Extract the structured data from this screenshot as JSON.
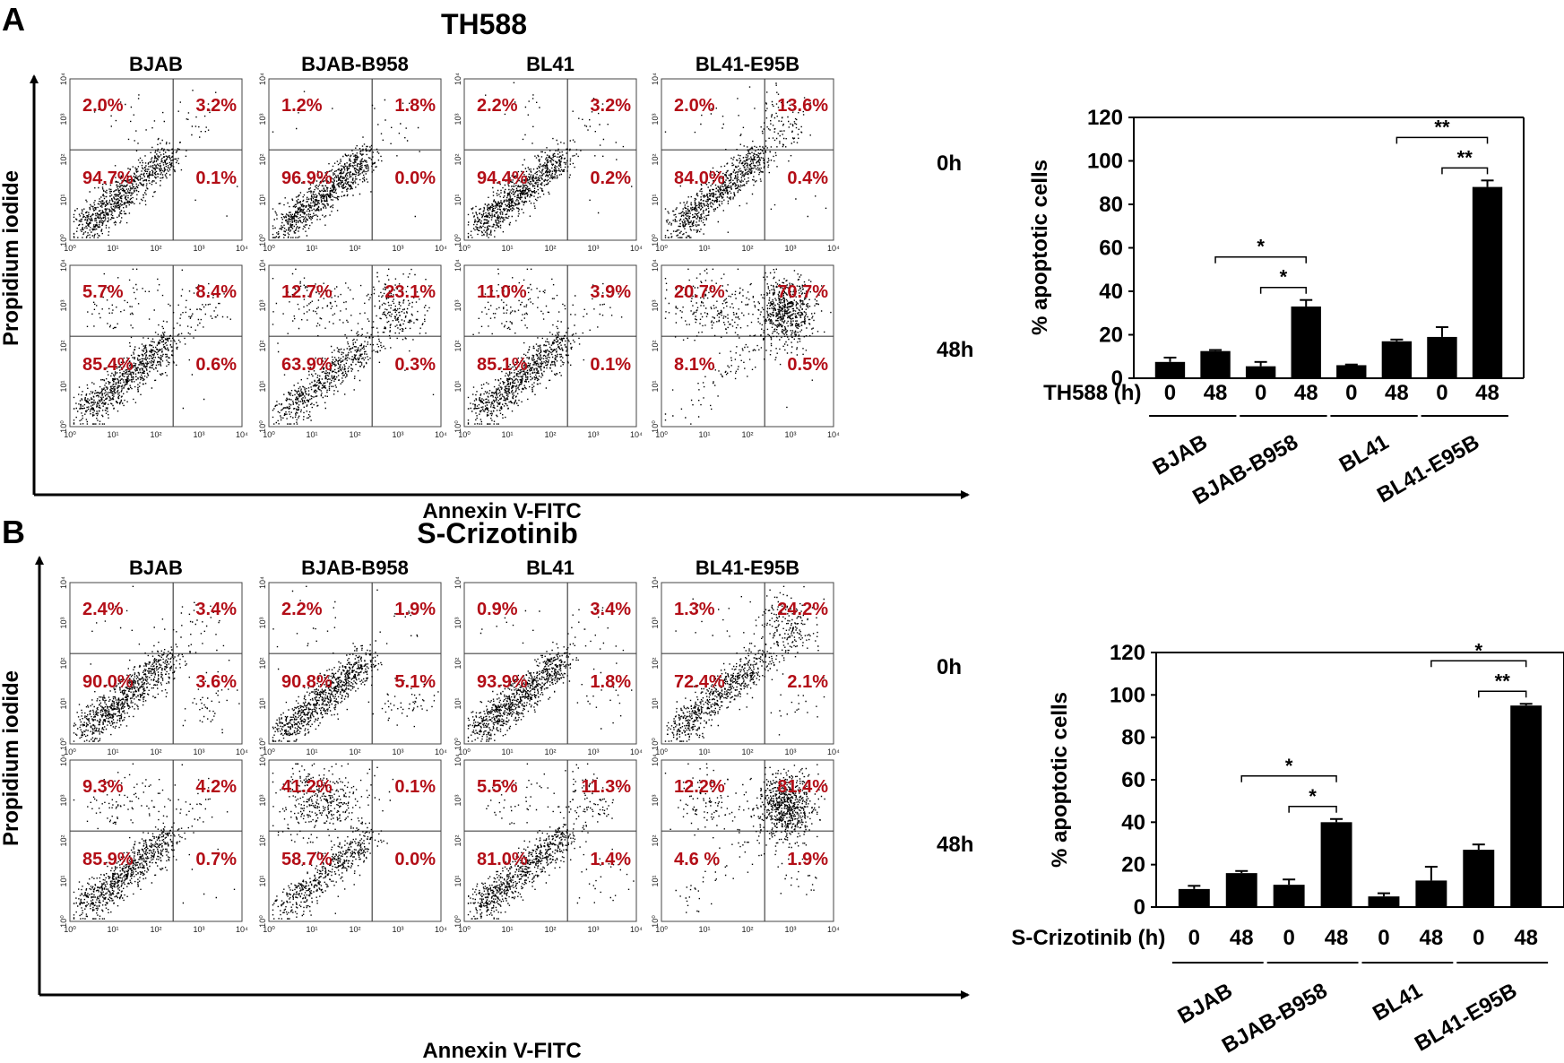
{
  "panels": [
    {
      "letter": "A",
      "title": "TH588",
      "cell_lines": [
        "BJAB",
        "BJAB-B958",
        "BL41",
        "BL41-E95B"
      ],
      "timepoints": [
        "0h",
        "48h"
      ],
      "y_axis_label": "Propidium iodide",
      "x_axis_label": "Annexin V-FITC",
      "flow_quadrants": [
        [
          {
            "ul": "2.0%",
            "ur": "3.2%",
            "ll": "94.7%",
            "lr": "0.1%"
          },
          {
            "ul": "1.2%",
            "ur": "1.8%",
            "ll": "96.9%",
            "lr": "0.0%"
          },
          {
            "ul": "2.2%",
            "ur": "3.2%",
            "ll": "94.4%",
            "lr": "0.2%"
          },
          {
            "ul": "2.0%",
            "ur": "13.6%",
            "ll": "84.0%",
            "lr": "0.4%"
          }
        ],
        [
          {
            "ul": "5.7%",
            "ur": "8.4%",
            "ll": "85.4%",
            "lr": "0.6%"
          },
          {
            "ul": "12.7%",
            "ur": "23.1%",
            "ll": "63.9%",
            "lr": "0.3%"
          },
          {
            "ul": "11.0%",
            "ur": "3.9%",
            "ll": "85.1%",
            "lr": "0.1%"
          },
          {
            "ul": "20.7%",
            "ur": "70.7%",
            "ll": "8.1%",
            "lr": "0.5%"
          }
        ]
      ],
      "treatment_label": "TH588 (h)"
    },
    {
      "letter": "B",
      "title": "S-Crizotinib",
      "cell_lines": [
        "BJAB",
        "BJAB-B958",
        "BL41",
        "BL41-E95B"
      ],
      "timepoints": [
        "0h",
        "48h"
      ],
      "y_axis_label": "Propidium iodide",
      "x_axis_label": "Annexin V-FITC",
      "flow_quadrants": [
        [
          {
            "ul": "2.4%",
            "ur": "3.4%",
            "ll": "90.0%",
            "lr": "3.6%"
          },
          {
            "ul": "2.2%",
            "ur": "1.9%",
            "ll": "90.8%",
            "lr": "5.1%"
          },
          {
            "ul": "0.9%",
            "ur": "3.4%",
            "ll": "93.9%",
            "lr": "1.8%"
          },
          {
            "ul": "1.3%",
            "ur": "24.2%",
            "ll": "72.4%",
            "lr": "2.1%"
          }
        ],
        [
          {
            "ul": "9.3%",
            "ur": "4.2%",
            "ll": "85.9%",
            "lr": "0.7%"
          },
          {
            "ul": "41.2%",
            "ur": "0.1%",
            "ll": "58.7%",
            "lr": "0.0%"
          },
          {
            "ul": "5.5%",
            "ur": "11.3%",
            "ll": "81.0%",
            "lr": "1.4%"
          },
          {
            "ul": "12.2%",
            "ur": "81.4%",
            "ll": "4.6 %",
            "lr": "1.9%"
          }
        ]
      ],
      "treatment_label": "S-Crizotinib (h)"
    }
  ],
  "flow_axis_ticks": [
    "10⁰",
    "10¹",
    "10²",
    "10³",
    "10⁴"
  ],
  "chart_data": [
    {
      "type": "bar",
      "title": "TH588",
      "ylabel": "% apoptotic cells",
      "xlabel": "TH588 (h)",
      "ylim": [
        0,
        120
      ],
      "yticks": [
        0,
        20,
        40,
        60,
        80,
        100,
        120
      ],
      "groups": [
        "BJAB",
        "BJAB-B958",
        "BL41",
        "BL41-E95B"
      ],
      "categories": [
        "0",
        "48",
        "0",
        "48",
        "0",
        "48",
        "0",
        "48"
      ],
      "values": [
        7.5,
        12.5,
        5.5,
        33,
        6,
        17,
        19,
        88
      ],
      "errors": [
        2,
        0.5,
        2,
        3,
        0.3,
        0.8,
        4.5,
        3
      ],
      "significance": [
        {
          "label": "*",
          "from_bar": 1,
          "to_bar": 3
        },
        {
          "label": "*",
          "from_bar": 2,
          "to_bar": 3
        },
        {
          "label": "**",
          "from_bar": 5,
          "to_bar": 7
        },
        {
          "label": "**",
          "from_bar": 6,
          "to_bar": 7
        }
      ]
    },
    {
      "type": "bar",
      "title": "S-Crizotinib",
      "ylabel": "% apoptotic cells",
      "xlabel": "S-Crizotinib (h)",
      "ylim": [
        0,
        120
      ],
      "yticks": [
        0,
        20,
        40,
        60,
        80,
        100,
        120
      ],
      "groups": [
        "BJAB",
        "BJAB-B958",
        "BL41",
        "BL41-E95B"
      ],
      "categories": [
        "0",
        "48",
        "0",
        "48",
        "0",
        "48",
        "0",
        "48"
      ],
      "values": [
        8.5,
        16,
        10.5,
        40,
        5,
        12.5,
        27,
        95
      ],
      "errors": [
        1.5,
        1,
        2.5,
        1.5,
        1.5,
        6.5,
        2.5,
        0.8
      ],
      "significance": [
        {
          "label": "*",
          "from_bar": 1,
          "to_bar": 3
        },
        {
          "label": "*",
          "from_bar": 2,
          "to_bar": 3
        },
        {
          "label": "*",
          "from_bar": 5,
          "to_bar": 7
        },
        {
          "label": "**",
          "from_bar": 6,
          "to_bar": 7
        }
      ]
    }
  ]
}
